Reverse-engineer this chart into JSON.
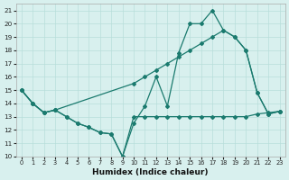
{
  "line1_x": [
    0,
    1,
    2,
    3,
    4,
    5,
    6,
    7,
    8,
    9,
    10,
    11,
    12,
    13,
    14,
    15,
    16,
    17,
    18,
    19,
    20,
    21,
    22,
    23
  ],
  "line1_y": [
    15.0,
    14.0,
    13.3,
    13.5,
    13.0,
    12.5,
    12.2,
    11.8,
    11.7,
    10.0,
    12.5,
    13.8,
    16.0,
    13.8,
    17.8,
    20.0,
    20.0,
    21.0,
    19.5,
    19.0,
    18.0,
    14.8,
    13.2,
    13.4
  ],
  "line2_x": [
    0,
    1,
    2,
    3,
    10,
    11,
    12,
    13,
    14,
    15,
    16,
    17,
    18,
    19,
    20,
    21,
    22,
    23
  ],
  "line2_y": [
    15.0,
    14.0,
    13.3,
    13.5,
    15.5,
    16.0,
    16.5,
    17.0,
    17.5,
    18.0,
    18.5,
    19.0,
    19.5,
    19.0,
    18.0,
    14.8,
    13.2,
    13.4
  ],
  "line3_x": [
    0,
    1,
    2,
    3,
    4,
    5,
    6,
    7,
    8,
    9,
    10,
    11,
    12,
    13,
    14,
    15,
    16,
    17,
    18,
    19,
    20,
    21,
    22,
    23
  ],
  "line3_y": [
    15.0,
    14.0,
    13.3,
    13.5,
    13.0,
    12.5,
    12.2,
    11.8,
    11.7,
    10.0,
    13.0,
    13.0,
    13.0,
    13.0,
    13.0,
    13.0,
    13.0,
    13.0,
    13.0,
    13.0,
    13.0,
    13.2,
    13.3,
    13.4
  ],
  "line_color": "#1a7a6e",
  "bg_color": "#d8f0ee",
  "grid_color": "#b8deda",
  "xlabel": "Humidex (Indice chaleur)",
  "ylim": [
    10,
    21.5
  ],
  "xlim": [
    -0.5,
    23.5
  ],
  "yticks": [
    10,
    11,
    12,
    13,
    14,
    15,
    16,
    17,
    18,
    19,
    20,
    21
  ],
  "xticks": [
    0,
    1,
    2,
    3,
    4,
    5,
    6,
    7,
    8,
    9,
    10,
    11,
    12,
    13,
    14,
    15,
    16,
    17,
    18,
    19,
    20,
    21,
    22,
    23
  ]
}
